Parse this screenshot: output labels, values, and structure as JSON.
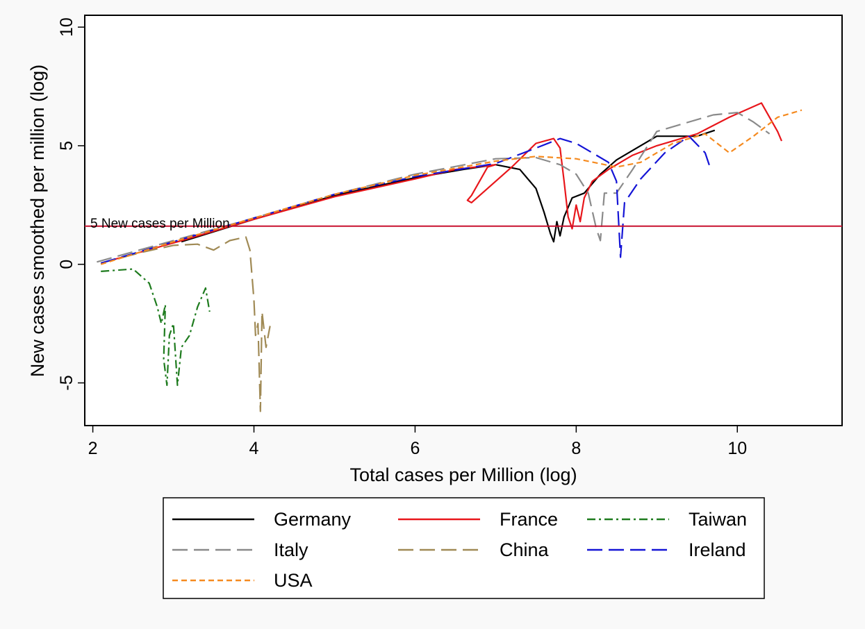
{
  "chart_data": {
    "type": "line",
    "xlabel": "Total cases per Million (log)",
    "ylabel": "New cases smoothed per million (log)",
    "xlim": [
      1.9,
      11.3
    ],
    "ylim": [
      -6.8,
      10.5
    ],
    "xticks": [
      2,
      4,
      6,
      8,
      10
    ],
    "yticks": [
      -5,
      0,
      5,
      10
    ],
    "grid": false,
    "legend_position": "bottom",
    "reference_line": {
      "y": 1.61,
      "label": "5 New cases per Million",
      "color": "#c8102e"
    },
    "series": [
      {
        "name": "Germany",
        "color": "#000000",
        "dash": "solid",
        "points": [
          [
            3.1,
            0.95
          ],
          [
            4.0,
            1.9
          ],
          [
            5.0,
            2.9
          ],
          [
            6.0,
            3.65
          ],
          [
            6.6,
            4.0
          ],
          [
            7.0,
            4.2
          ],
          [
            7.3,
            4.0
          ],
          [
            7.5,
            3.2
          ],
          [
            7.6,
            2.2
          ],
          [
            7.68,
            1.3
          ],
          [
            7.72,
            0.95
          ],
          [
            7.76,
            1.8
          ],
          [
            7.8,
            1.2
          ],
          [
            7.85,
            2.0
          ],
          [
            7.95,
            2.8
          ],
          [
            8.1,
            3.0
          ],
          [
            8.3,
            3.8
          ],
          [
            8.5,
            4.4
          ],
          [
            8.7,
            4.8
          ],
          [
            9.0,
            5.4
          ],
          [
            9.3,
            5.4
          ],
          [
            9.5,
            5.4
          ],
          [
            9.72,
            5.65
          ]
        ]
      },
      {
        "name": "France",
        "color": "#e8161b",
        "dash": "solid",
        "points": [
          [
            2.1,
            0.05
          ],
          [
            3.0,
            0.9
          ],
          [
            4.0,
            1.9
          ],
          [
            5.0,
            2.85
          ],
          [
            6.0,
            3.6
          ],
          [
            6.5,
            4.0
          ],
          [
            7.0,
            4.2
          ],
          [
            6.9,
            4.1
          ],
          [
            6.7,
            2.9
          ],
          [
            6.65,
            2.7
          ],
          [
            6.7,
            2.6
          ],
          [
            7.2,
            4.1
          ],
          [
            7.5,
            5.1
          ],
          [
            7.72,
            5.3
          ],
          [
            7.8,
            4.9
          ],
          [
            7.85,
            3.5
          ],
          [
            7.9,
            2.0
          ],
          [
            7.95,
            1.5
          ],
          [
            8.0,
            2.5
          ],
          [
            8.05,
            1.8
          ],
          [
            8.1,
            2.8
          ],
          [
            8.2,
            3.5
          ],
          [
            8.4,
            4.0
          ],
          [
            8.7,
            4.6
          ],
          [
            9.0,
            5.0
          ],
          [
            9.5,
            5.5
          ],
          [
            9.9,
            6.2
          ],
          [
            10.1,
            6.5
          ],
          [
            10.3,
            6.8
          ],
          [
            10.5,
            5.6
          ],
          [
            10.55,
            5.2
          ]
        ]
      },
      {
        "name": "Taiwan",
        "color": "#1e7b1e",
        "dash": "dashdot",
        "points": [
          [
            2.1,
            -0.3
          ],
          [
            2.5,
            -0.2
          ],
          [
            2.7,
            -0.8
          ],
          [
            2.8,
            -1.8
          ],
          [
            2.85,
            -2.5
          ],
          [
            2.9,
            -1.7
          ],
          [
            2.88,
            -4.0
          ],
          [
            2.92,
            -5.1
          ],
          [
            2.95,
            -3.0
          ],
          [
            3.0,
            -2.5
          ],
          [
            3.05,
            -5.1
          ],
          [
            3.1,
            -3.5
          ],
          [
            3.2,
            -3.0
          ],
          [
            3.3,
            -1.8
          ],
          [
            3.4,
            -1.0
          ],
          [
            3.45,
            -2.0
          ]
        ]
      },
      {
        "name": "Italy",
        "color": "#8a8a8a",
        "dash": "longdash",
        "points": [
          [
            2.05,
            0.1
          ],
          [
            3.0,
            1.0
          ],
          [
            4.0,
            1.95
          ],
          [
            5.0,
            2.95
          ],
          [
            6.0,
            3.8
          ],
          [
            7.0,
            4.45
          ],
          [
            7.5,
            4.5
          ],
          [
            7.8,
            4.2
          ],
          [
            8.0,
            3.8
          ],
          [
            8.15,
            3.0
          ],
          [
            8.25,
            1.5
          ],
          [
            8.3,
            1.0
          ],
          [
            8.35,
            3.0
          ],
          [
            8.5,
            3.0
          ],
          [
            8.7,
            4.0
          ],
          [
            9.0,
            5.6
          ],
          [
            9.3,
            5.9
          ],
          [
            9.7,
            6.3
          ],
          [
            10.0,
            6.4
          ],
          [
            10.2,
            6.0
          ],
          [
            10.4,
            5.5
          ]
        ]
      },
      {
        "name": "China",
        "color": "#a08a55",
        "dash": "longdash",
        "points": [
          [
            2.1,
            0.05
          ],
          [
            2.6,
            0.5
          ],
          [
            3.0,
            0.8
          ],
          [
            3.3,
            0.85
          ],
          [
            3.5,
            0.6
          ],
          [
            3.7,
            1.0
          ],
          [
            3.9,
            1.15
          ],
          [
            3.95,
            0.6
          ],
          [
            4.0,
            -1.5
          ],
          [
            4.02,
            -3.0
          ],
          [
            4.05,
            -2.5
          ],
          [
            4.08,
            -6.2
          ],
          [
            4.1,
            -2.0
          ],
          [
            4.15,
            -3.5
          ],
          [
            4.2,
            -2.6
          ]
        ]
      },
      {
        "name": "Ireland",
        "color": "#1414d6",
        "dash": "longdash",
        "points": [
          [
            2.1,
            0.05
          ],
          [
            3.0,
            0.95
          ],
          [
            4.0,
            1.95
          ],
          [
            5.0,
            2.95
          ],
          [
            6.0,
            3.7
          ],
          [
            7.0,
            4.25
          ],
          [
            7.5,
            4.9
          ],
          [
            7.8,
            5.3
          ],
          [
            8.0,
            5.1
          ],
          [
            8.2,
            4.7
          ],
          [
            8.4,
            4.3
          ],
          [
            8.5,
            3.5
          ],
          [
            8.55,
            0.3
          ],
          [
            8.6,
            2.6
          ],
          [
            8.8,
            3.6
          ],
          [
            9.1,
            4.7
          ],
          [
            9.4,
            5.4
          ],
          [
            9.6,
            4.7
          ],
          [
            9.66,
            4.1
          ]
        ]
      },
      {
        "name": "USA",
        "color": "#f58a1f",
        "dash": "dashed",
        "points": [
          [
            2.1,
            0.0
          ],
          [
            3.0,
            0.95
          ],
          [
            4.0,
            1.95
          ],
          [
            5.0,
            2.95
          ],
          [
            6.0,
            3.75
          ],
          [
            7.0,
            4.35
          ],
          [
            7.5,
            4.55
          ],
          [
            8.0,
            4.45
          ],
          [
            8.5,
            4.1
          ],
          [
            8.8,
            4.3
          ],
          [
            9.2,
            5.1
          ],
          [
            9.6,
            5.5
          ],
          [
            9.9,
            4.7
          ],
          [
            10.2,
            5.4
          ],
          [
            10.5,
            6.2
          ],
          [
            10.8,
            6.5
          ]
        ]
      }
    ]
  }
}
